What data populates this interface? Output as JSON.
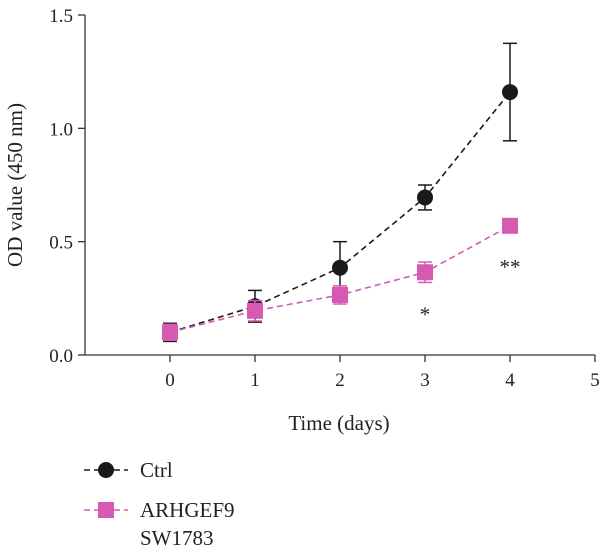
{
  "chart_data": {
    "type": "line",
    "title": "",
    "xlabel": "Time (days)",
    "ylabel": "OD value (450 nm)",
    "xlim": [
      -1,
      5
    ],
    "ylim": [
      0,
      1.5
    ],
    "xticks": [
      0,
      1,
      2,
      3,
      4,
      5
    ],
    "xtick_labels": [
      "0",
      "1",
      "2",
      "3",
      "4",
      "5"
    ],
    "yticks": [
      0,
      0.5,
      1.0,
      1.5
    ],
    "ytick_labels": [
      "0.0",
      "0.5",
      "1.0",
      "1.5"
    ],
    "grid": false,
    "legend_position": "bottom-left",
    "series": [
      {
        "name": "Ctrl",
        "color": "#1a1a1a",
        "marker": "circle",
        "line_style": "dashed",
        "x": [
          0,
          1,
          2,
          3,
          4
        ],
        "y": [
          0.1,
          0.215,
          0.385,
          0.695,
          1.16
        ],
        "error": [
          0.04,
          0.07,
          0.115,
          0.055,
          0.215
        ]
      },
      {
        "name": "ARHGEF9",
        "name_line2": "SW1783",
        "color": "#d65ab4",
        "marker": "square",
        "line_style": "dashed",
        "x": [
          0,
          1,
          2,
          3,
          4
        ],
        "y": [
          0.1,
          0.195,
          0.265,
          0.365,
          0.57
        ],
        "error": [
          0.035,
          0.045,
          0.04,
          0.045,
          0.025
        ]
      }
    ],
    "annotations": [
      {
        "text": "*",
        "x": 3,
        "y": 0.2
      },
      {
        "text": "**",
        "x": 4,
        "y": 0.41
      }
    ]
  }
}
